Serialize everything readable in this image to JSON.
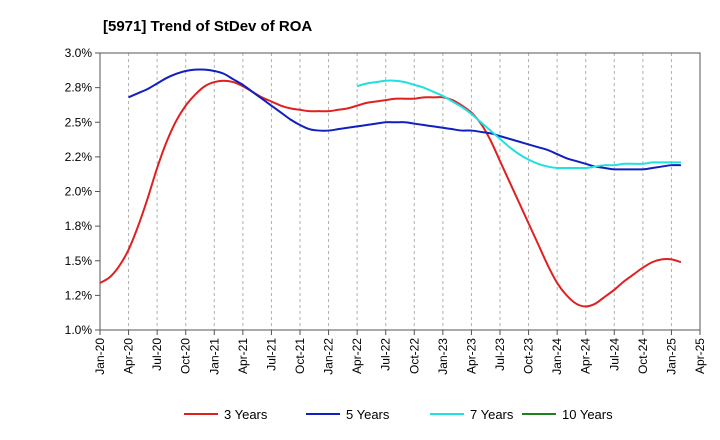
{
  "chart_data": {
    "type": "line",
    "title": "[5971]  Trend of StDev of ROA",
    "xlabel": "",
    "ylabel": "",
    "x_ticks": [
      "Jan-20",
      "Apr-20",
      "Jul-20",
      "Oct-20",
      "Jan-21",
      "Apr-21",
      "Jul-21",
      "Oct-21",
      "Jan-22",
      "Apr-22",
      "Jul-22",
      "Oct-22",
      "Jan-23",
      "Apr-23",
      "Jul-23",
      "Oct-23",
      "Jan-24",
      "Apr-24",
      "Jul-24",
      "Oct-24",
      "Jan-25",
      "Apr-25"
    ],
    "y_ticks": [
      "1.0%",
      "1.2%",
      "1.5%",
      "1.8%",
      "2.0%",
      "2.2%",
      "2.5%",
      "2.8%",
      "3.0%"
    ],
    "ylim": [
      1.0,
      3.0
    ],
    "grid": "vertical dashed",
    "legend_position": "bottom",
    "series": [
      {
        "name": "3 Years",
        "color": "#e02020",
        "points": [
          [
            "Jan-20",
            1.34
          ],
          [
            "Feb-20",
            1.38
          ],
          [
            "Mar-20",
            1.46
          ],
          [
            "Apr-20",
            1.58
          ],
          [
            "May-20",
            1.75
          ],
          [
            "Jun-20",
            1.95
          ],
          [
            "Jul-20",
            2.17
          ],
          [
            "Aug-20",
            2.36
          ],
          [
            "Sep-20",
            2.51
          ],
          [
            "Oct-20",
            2.62
          ],
          [
            "Nov-20",
            2.7
          ],
          [
            "Dec-20",
            2.76
          ],
          [
            "Jan-21",
            2.79
          ],
          [
            "Feb-21",
            2.8
          ],
          [
            "Mar-21",
            2.79
          ],
          [
            "Apr-21",
            2.76
          ],
          [
            "May-21",
            2.72
          ],
          [
            "Jun-21",
            2.68
          ],
          [
            "Jul-21",
            2.65
          ],
          [
            "Aug-21",
            2.62
          ],
          [
            "Sep-21",
            2.6
          ],
          [
            "Oct-21",
            2.59
          ],
          [
            "Nov-21",
            2.58
          ],
          [
            "Dec-21",
            2.58
          ],
          [
            "Jan-22",
            2.58
          ],
          [
            "Feb-22",
            2.59
          ],
          [
            "Mar-22",
            2.6
          ],
          [
            "Apr-22",
            2.62
          ],
          [
            "May-22",
            2.64
          ],
          [
            "Jun-22",
            2.65
          ],
          [
            "Jul-22",
            2.66
          ],
          [
            "Aug-22",
            2.67
          ],
          [
            "Sep-22",
            2.67
          ],
          [
            "Oct-22",
            2.67
          ],
          [
            "Nov-22",
            2.68
          ],
          [
            "Dec-22",
            2.68
          ],
          [
            "Jan-23",
            2.68
          ],
          [
            "Feb-23",
            2.66
          ],
          [
            "Mar-23",
            2.62
          ],
          [
            "Apr-23",
            2.57
          ],
          [
            "May-23",
            2.49
          ],
          [
            "Jun-23",
            2.37
          ],
          [
            "Jul-23",
            2.22
          ],
          [
            "Aug-23",
            2.07
          ],
          [
            "Sep-23",
            1.92
          ],
          [
            "Oct-23",
            1.77
          ],
          [
            "Nov-23",
            1.62
          ],
          [
            "Dec-23",
            1.47
          ],
          [
            "Jan-24",
            1.34
          ],
          [
            "Feb-24",
            1.25
          ],
          [
            "Mar-24",
            1.19
          ],
          [
            "Apr-24",
            1.17
          ],
          [
            "May-24",
            1.19
          ],
          [
            "Jun-24",
            1.24
          ],
          [
            "Jul-24",
            1.29
          ],
          [
            "Aug-24",
            1.35
          ],
          [
            "Sep-24",
            1.4
          ],
          [
            "Oct-24",
            1.45
          ],
          [
            "Nov-24",
            1.49
          ],
          [
            "Dec-24",
            1.51
          ],
          [
            "Jan-25",
            1.51
          ],
          [
            "Feb-25",
            1.49
          ]
        ]
      },
      {
        "name": "5 Years",
        "color": "#1020c0",
        "points": [
          [
            "Apr-20",
            2.68
          ],
          [
            "May-20",
            2.71
          ],
          [
            "Jun-20",
            2.74
          ],
          [
            "Jul-20",
            2.78
          ],
          [
            "Aug-20",
            2.82
          ],
          [
            "Sep-20",
            2.85
          ],
          [
            "Oct-20",
            2.87
          ],
          [
            "Nov-20",
            2.88
          ],
          [
            "Dec-20",
            2.88
          ],
          [
            "Jan-21",
            2.87
          ],
          [
            "Feb-21",
            2.85
          ],
          [
            "Mar-21",
            2.81
          ],
          [
            "Apr-21",
            2.77
          ],
          [
            "May-21",
            2.72
          ],
          [
            "Jun-21",
            2.67
          ],
          [
            "Jul-21",
            2.62
          ],
          [
            "Aug-21",
            2.57
          ],
          [
            "Sep-21",
            2.52
          ],
          [
            "Oct-21",
            2.48
          ],
          [
            "Nov-21",
            2.45
          ],
          [
            "Dec-21",
            2.44
          ],
          [
            "Jan-22",
            2.44
          ],
          [
            "Feb-22",
            2.45
          ],
          [
            "Mar-22",
            2.46
          ],
          [
            "Apr-22",
            2.47
          ],
          [
            "May-22",
            2.48
          ],
          [
            "Jun-22",
            2.49
          ],
          [
            "Jul-22",
            2.5
          ],
          [
            "Aug-22",
            2.5
          ],
          [
            "Sep-22",
            2.5
          ],
          [
            "Oct-22",
            2.49
          ],
          [
            "Nov-22",
            2.48
          ],
          [
            "Dec-22",
            2.47
          ],
          [
            "Jan-23",
            2.46
          ],
          [
            "Feb-23",
            2.45
          ],
          [
            "Mar-23",
            2.44
          ],
          [
            "Apr-23",
            2.44
          ],
          [
            "May-23",
            2.43
          ],
          [
            "Jun-23",
            2.42
          ],
          [
            "Jul-23",
            2.4
          ],
          [
            "Aug-23",
            2.38
          ],
          [
            "Sep-23",
            2.36
          ],
          [
            "Oct-23",
            2.34
          ],
          [
            "Nov-23",
            2.32
          ],
          [
            "Dec-23",
            2.3
          ],
          [
            "Jan-24",
            2.27
          ],
          [
            "Feb-24",
            2.24
          ],
          [
            "Mar-24",
            2.22
          ],
          [
            "Apr-24",
            2.2
          ],
          [
            "May-24",
            2.18
          ],
          [
            "Jun-24",
            2.17
          ],
          [
            "Jul-24",
            2.16
          ],
          [
            "Aug-24",
            2.16
          ],
          [
            "Sep-24",
            2.16
          ],
          [
            "Oct-24",
            2.16
          ],
          [
            "Nov-24",
            2.17
          ],
          [
            "Dec-24",
            2.18
          ],
          [
            "Jan-25",
            2.19
          ],
          [
            "Feb-25",
            2.19
          ]
        ]
      },
      {
        "name": "7 Years",
        "color": "#20e0e0",
        "points": [
          [
            "Apr-22",
            2.76
          ],
          [
            "May-22",
            2.78
          ],
          [
            "Jun-22",
            2.79
          ],
          [
            "Jul-22",
            2.8
          ],
          [
            "Aug-22",
            2.8
          ],
          [
            "Sep-22",
            2.79
          ],
          [
            "Oct-22",
            2.77
          ],
          [
            "Nov-22",
            2.75
          ],
          [
            "Dec-22",
            2.72
          ],
          [
            "Jan-23",
            2.69
          ],
          [
            "Feb-23",
            2.65
          ],
          [
            "Mar-23",
            2.61
          ],
          [
            "Apr-23",
            2.56
          ],
          [
            "May-23",
            2.5
          ],
          [
            "Jun-23",
            2.44
          ],
          [
            "Jul-23",
            2.38
          ],
          [
            "Aug-23",
            2.32
          ],
          [
            "Sep-23",
            2.27
          ],
          [
            "Oct-23",
            2.23
          ],
          [
            "Nov-23",
            2.2
          ],
          [
            "Dec-23",
            2.18
          ],
          [
            "Jan-24",
            2.17
          ],
          [
            "Feb-24",
            2.17
          ],
          [
            "Mar-24",
            2.17
          ],
          [
            "Apr-24",
            2.17
          ],
          [
            "May-24",
            2.18
          ],
          [
            "Jun-24",
            2.19
          ],
          [
            "Jul-24",
            2.19
          ],
          [
            "Aug-24",
            2.2
          ],
          [
            "Sep-24",
            2.2
          ],
          [
            "Oct-24",
            2.2
          ],
          [
            "Nov-24",
            2.21
          ],
          [
            "Dec-24",
            2.21
          ],
          [
            "Jan-25",
            2.21
          ],
          [
            "Feb-25",
            2.21
          ]
        ]
      },
      {
        "name": "10 Years",
        "color": "#208020",
        "points": []
      }
    ]
  }
}
